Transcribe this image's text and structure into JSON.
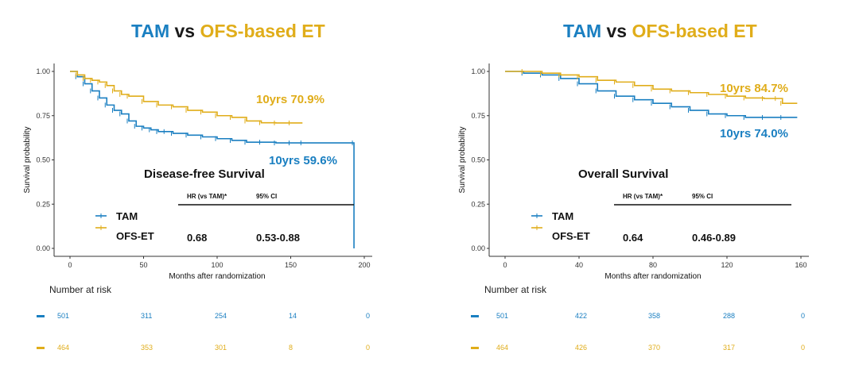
{
  "colors": {
    "tam": "#1a7fc1",
    "ofs": "#e0ad1a",
    "axis": "#333333"
  },
  "panels": [
    {
      "title": {
        "tam": "TAM",
        "vs": " vs ",
        "ofs": "OFS-based ET"
      },
      "panel_title": "Disease-free Survival",
      "hr_header": {
        "hr": "HR (vs TAM)",
        "ci": "95% CI"
      },
      "hr_value": "0.68",
      "ci_value": "0.53-0.88",
      "legend": [
        {
          "label": "TAM",
          "color": "#1a7fc1"
        },
        {
          "label": "OFS-ET",
          "color": "#e0ad1a"
        }
      ],
      "annotations": {
        "ofs": "10yrs 70.9%",
        "tam": "10yrs 59.6%"
      },
      "risk_table": {
        "title": "Number at risk",
        "tam": [
          "501",
          "311",
          "254",
          "14",
          "0"
        ],
        "ofs": [
          "464",
          "353",
          "301",
          "8",
          "0"
        ]
      }
    },
    {
      "title": {
        "tam": "TAM",
        "vs": " vs ",
        "ofs": "OFS-based ET"
      },
      "panel_title": "Overall Survival",
      "hr_header": {
        "hr": "HR (vs TAM)",
        "ci": "95% CI"
      },
      "hr_value": "0.64",
      "ci_value": "0.46-0.89",
      "legend": [
        {
          "label": "TAM",
          "color": "#1a7fc1"
        },
        {
          "label": "OFS-ET",
          "color": "#e0ad1a"
        }
      ],
      "annotations": {
        "ofs": "10yrs 84.7%",
        "tam": "10yrs 74.0%"
      },
      "risk_table": {
        "title": "Number at risk",
        "tam": [
          "501",
          "422",
          "358",
          "288",
          "0"
        ],
        "ofs": [
          "464",
          "426",
          "370",
          "317",
          "0"
        ]
      }
    }
  ],
  "chart_data": [
    {
      "type": "line",
      "title": "Disease-free Survival",
      "xlabel": "Months after randomization",
      "ylabel": "Survival probability",
      "xlim": [
        0,
        200
      ],
      "ylim": [
        0,
        1
      ],
      "xticks": [
        0,
        50,
        100,
        150,
        200
      ],
      "yticks": [
        "0.00",
        "0.25",
        "0.50",
        "0.75",
        "1.00"
      ],
      "grid": false,
      "series": [
        {
          "name": "TAM",
          "color": "#1a7fc1",
          "x": [
            0,
            5,
            10,
            15,
            20,
            25,
            30,
            35,
            40,
            45,
            50,
            55,
            60,
            65,
            70,
            80,
            90,
            100,
            110,
            120,
            130,
            140,
            150,
            158,
            193,
            193
          ],
          "y": [
            1.0,
            0.97,
            0.93,
            0.89,
            0.85,
            0.81,
            0.78,
            0.76,
            0.72,
            0.69,
            0.68,
            0.67,
            0.66,
            0.66,
            0.65,
            0.64,
            0.63,
            0.62,
            0.61,
            0.6,
            0.6,
            0.596,
            0.596,
            0.596,
            0.596,
            0.0
          ]
        },
        {
          "name": "OFS-ET",
          "color": "#e0ad1a",
          "x": [
            0,
            5,
            10,
            15,
            20,
            25,
            30,
            35,
            40,
            50,
            60,
            70,
            80,
            90,
            100,
            110,
            120,
            130,
            140,
            150,
            158
          ],
          "y": [
            1.0,
            0.98,
            0.96,
            0.95,
            0.94,
            0.92,
            0.89,
            0.87,
            0.86,
            0.83,
            0.81,
            0.8,
            0.78,
            0.77,
            0.75,
            0.74,
            0.72,
            0.71,
            0.709,
            0.709,
            0.709
          ]
        }
      ]
    },
    {
      "type": "line",
      "title": "Overall Survival",
      "xlabel": "Months after randomization",
      "ylabel": "Survival probability",
      "xlim": [
        0,
        160
      ],
      "ylim": [
        0,
        1
      ],
      "xticks": [
        0,
        40,
        80,
        120,
        160
      ],
      "yticks": [
        "0.00",
        "0.25",
        "0.50",
        "0.75",
        "1.00"
      ],
      "grid": false,
      "series": [
        {
          "name": "TAM",
          "color": "#1a7fc1",
          "x": [
            0,
            10,
            20,
            30,
            40,
            50,
            60,
            70,
            80,
            90,
            100,
            110,
            120,
            130,
            140,
            150,
            158
          ],
          "y": [
            1.0,
            0.99,
            0.98,
            0.96,
            0.93,
            0.89,
            0.86,
            0.84,
            0.82,
            0.8,
            0.78,
            0.76,
            0.75,
            0.74,
            0.74,
            0.74,
            0.74
          ]
        },
        {
          "name": "OFS-ET",
          "color": "#e0ad1a",
          "x": [
            0,
            10,
            20,
            30,
            40,
            50,
            60,
            70,
            80,
            90,
            100,
            110,
            120,
            130,
            140,
            147,
            150,
            158
          ],
          "y": [
            1.0,
            1.0,
            0.99,
            0.98,
            0.97,
            0.95,
            0.94,
            0.92,
            0.9,
            0.89,
            0.88,
            0.87,
            0.86,
            0.85,
            0.847,
            0.847,
            0.82,
            0.82
          ]
        }
      ]
    }
  ]
}
